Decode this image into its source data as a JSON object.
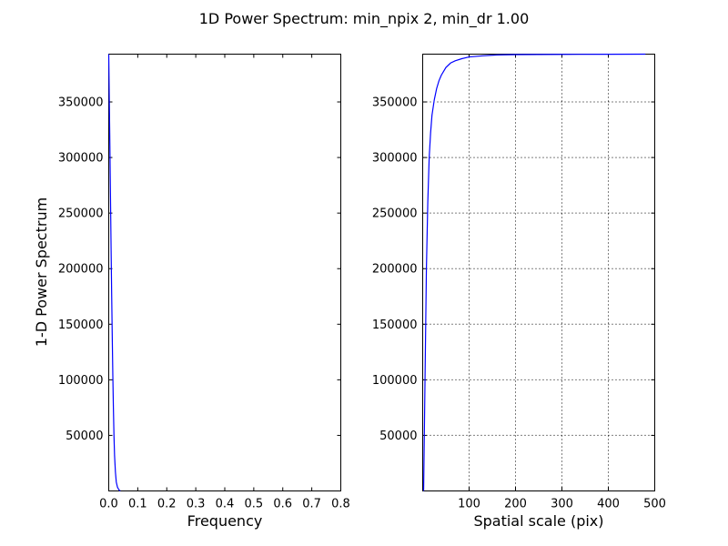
{
  "figure": {
    "title": "1D Power Spectrum: min_npix 2, min_dr 1.00"
  },
  "chart_data": [
    {
      "type": "line",
      "xlabel": "Frequency",
      "ylabel": "1-D Power Spectrum",
      "xlim": [
        0.0,
        0.8
      ],
      "ylim": [
        0,
        393000
      ],
      "grid": false,
      "xticks": [
        0.0,
        0.1,
        0.2,
        0.3,
        0.4,
        0.5,
        0.6,
        0.7,
        0.8
      ],
      "xtick_labels": [
        "0.0",
        "0.1",
        "0.2",
        "0.3",
        "0.4",
        "0.5",
        "0.6",
        "0.7",
        "0.8"
      ],
      "yticks": [
        50000,
        100000,
        150000,
        200000,
        250000,
        300000,
        350000
      ],
      "ytick_labels": [
        "50000",
        "100000",
        "150000",
        "200000",
        "250000",
        "300000",
        "350000"
      ],
      "series": [
        {
          "color": "#0000ff",
          "x": [
            0.0,
            0.002,
            0.004,
            0.006,
            0.008,
            0.01,
            0.012,
            0.014,
            0.016,
            0.018,
            0.02,
            0.023,
            0.026,
            0.03,
            0.035,
            0.04
          ],
          "y": [
            393000,
            350000,
            310000,
            265000,
            220000,
            178000,
            140000,
            105000,
            75000,
            50000,
            32000,
            17000,
            8000,
            3500,
            1000,
            0
          ]
        }
      ]
    },
    {
      "type": "line",
      "xlabel": "Spatial scale (pix)",
      "ylabel": "",
      "xlim": [
        0,
        500
      ],
      "ylim": [
        0,
        393000
      ],
      "grid": true,
      "xticks": [
        100,
        200,
        300,
        400,
        500
      ],
      "xtick_labels": [
        "100",
        "200",
        "300",
        "400",
        "500"
      ],
      "yticks": [
        50000,
        100000,
        150000,
        200000,
        250000,
        300000,
        350000
      ],
      "ytick_labels": [
        "50000",
        "100000",
        "150000",
        "200000",
        "250000",
        "300000",
        "350000"
      ],
      "series": [
        {
          "color": "#0000ff",
          "x": [
            2,
            5,
            8,
            11,
            14,
            17,
            20,
            25,
            30,
            35,
            40,
            50,
            60,
            70,
            85,
            100,
            130,
            160,
            200,
            300,
            400,
            480
          ],
          "y": [
            0,
            100000,
            200000,
            260000,
            300000,
            322000,
            338000,
            352000,
            362000,
            369000,
            374000,
            381000,
            385000,
            387000,
            389000,
            390500,
            391500,
            392300,
            392600,
            392800,
            392900,
            393000
          ]
        }
      ]
    }
  ]
}
